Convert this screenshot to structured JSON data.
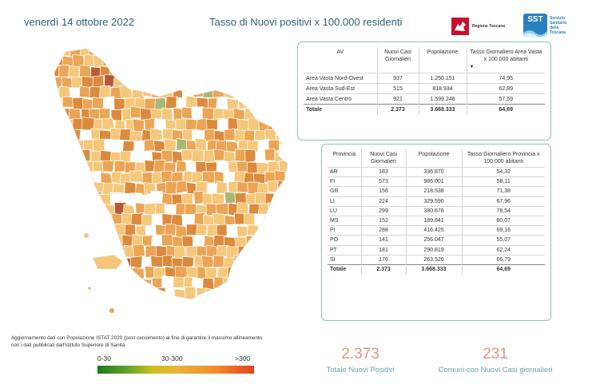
{
  "header": {
    "date": "venerdì 14 ottobre 2022",
    "title": "Tasso di Nuovi positivi x 100.000 residenti"
  },
  "logos": {
    "toscana": "Regione Toscana",
    "sst_badge": "SST",
    "sst_text": [
      "Servizio",
      "Sanitario",
      "della",
      "Toscana"
    ]
  },
  "av_table": {
    "headers": [
      "AV",
      "Nuovi Casi Giornalieri",
      "Popolazione",
      "Tasso Giornaliero Area Vasta x 100.000 abitanti"
    ],
    "rows": [
      [
        "Area Vasta Nord-Ovest",
        "937",
        "1.250.151",
        "74,95"
      ],
      [
        "Area Vasta Sud-Est",
        "515",
        "818.934",
        "62,89"
      ],
      [
        "Area Vasta Centro",
        "921",
        "1.599.248",
        "57,59"
      ]
    ],
    "total": [
      "Totale",
      "2.373",
      "3.668.333",
      "64,69"
    ]
  },
  "prov_table": {
    "headers": [
      "Provincia",
      "Nuovi Casi Giornalieri",
      "Popolazione",
      "Tasso Giornaliero Provincia x 100.000 abitanti"
    ],
    "rows": [
      [
        "AR",
        "183",
        "336.870",
        "54,32"
      ],
      [
        "FI",
        "573",
        "986.001",
        "58,11"
      ],
      [
        "GR",
        "156",
        "218.538",
        "71,38"
      ],
      [
        "LI",
        "224",
        "329.590",
        "67,96"
      ],
      [
        "LU",
        "299",
        "380.676",
        "78,54"
      ],
      [
        "MS",
        "152",
        "189.841",
        "80,07"
      ],
      [
        "PI",
        "288",
        "416.425",
        "69,16"
      ],
      [
        "PO",
        "141",
        "256.047",
        "55,07"
      ],
      [
        "PT",
        "181",
        "290.819",
        "62,24"
      ],
      [
        "SI",
        "176",
        "263.526",
        "66,79"
      ]
    ],
    "total": [
      "Totale",
      "2.373",
      "3.668.333",
      "64,69"
    ]
  },
  "footnote": {
    "line1": "Aggiornamento dati con Popolazione ISTAT 2020 (post censimento) al fine di garantire il massimo allineamento",
    "line2": "con i dati pubblicati dall'Istituto Superiore di Sanità"
  },
  "legend": {
    "low": "0-30",
    "mid": "30-300",
    "high": ">300",
    "colors": [
      "#1e7b1e",
      "#c8c01d",
      "#ef8d2e",
      "#e8411e"
    ]
  },
  "kpis": {
    "total_value": "2.373",
    "total_label": "Totale Nuovi Positivi",
    "comuni_value": "231",
    "comuni_label": "Comuni con Nuovi Casi giornalieri"
  },
  "map_colors": {
    "light": "#f4c77a",
    "medium": "#eba556",
    "dark": "#dc8a3e",
    "red": "#b8583a",
    "green": "#a8b874",
    "white": "#ffffff",
    "border": "#ffffff"
  }
}
